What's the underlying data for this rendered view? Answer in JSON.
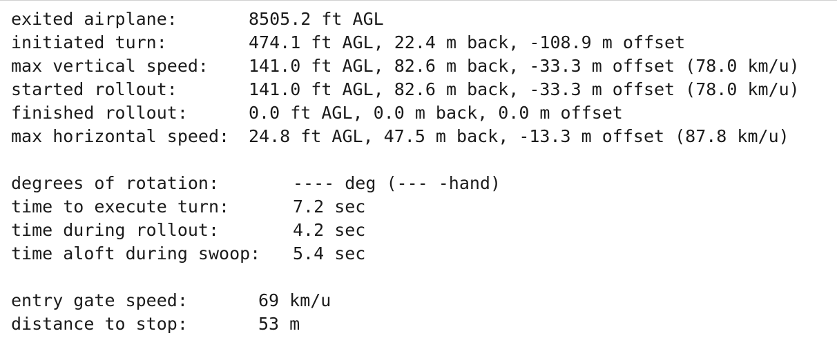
{
  "groups": [
    {
      "rows": [
        {
          "label": "exited airplane:",
          "value": "8505.2 ft AGL"
        },
        {
          "label": "initiated turn:",
          "value": "474.1 ft AGL, 22.4 m back, -108.9 m offset"
        },
        {
          "label": "max vertical speed:",
          "value": "141.0 ft AGL, 82.6 m back, -33.3 m offset (78.0 km/u)"
        },
        {
          "label": "started rollout:",
          "value": "141.0 ft AGL, 82.6 m back, -33.3 m offset (78.0 km/u)"
        },
        {
          "label": "finished rollout:",
          "value": "0.0 ft AGL, 0.0 m back, 0.0 m offset"
        },
        {
          "label": "max horizontal speed:",
          "value": "24.8 ft AGL, 47.5 m back, -13.3 m offset (87.8 km/u)"
        }
      ]
    },
    {
      "rows": [
        {
          "label": "degrees of rotation:",
          "value": "---- deg (--- -hand)"
        },
        {
          "label": "time to execute turn:",
          "value": "7.2 sec"
        },
        {
          "label": "time during rollout:",
          "value": "4.2 sec"
        },
        {
          "label": "time aloft during swoop:",
          "value": "5.4 sec"
        }
      ]
    },
    {
      "rows": [
        {
          "label": "entry gate speed:",
          "value": "69 km/u"
        },
        {
          "label": "distance to stop:",
          "value": "53 m"
        }
      ]
    }
  ]
}
